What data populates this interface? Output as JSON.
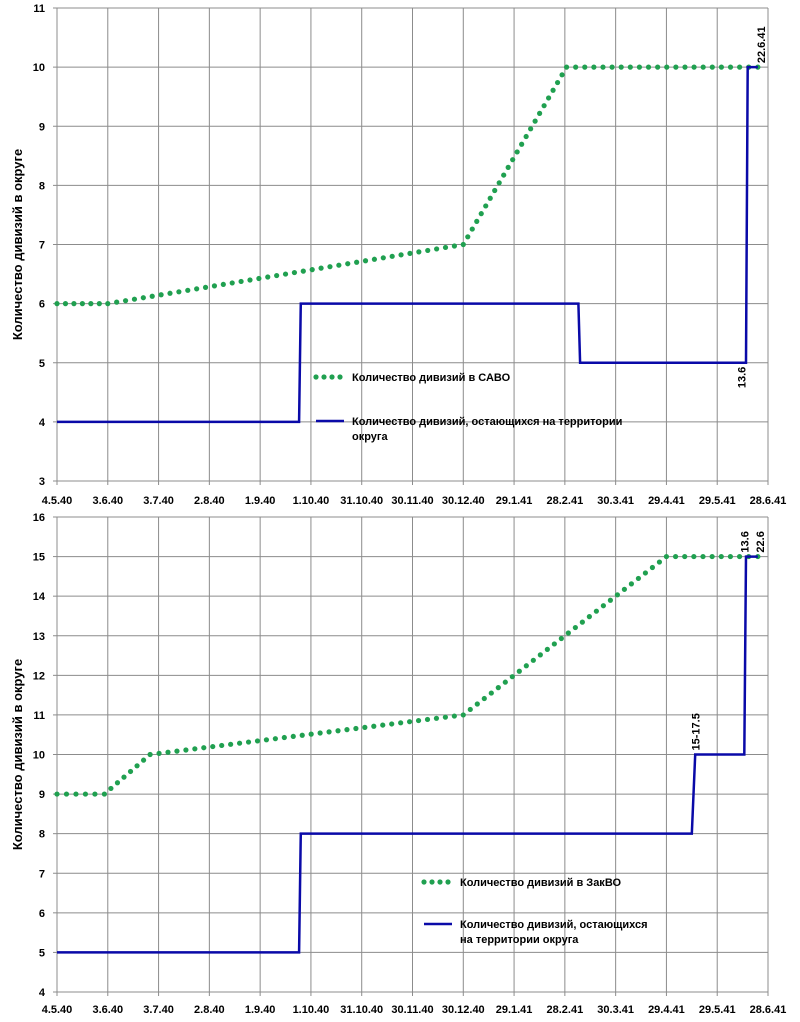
{
  "chart_data": [
    {
      "type": "line",
      "ylabel": "Количество дивизий в округе",
      "xlabel": "",
      "ylim": [
        3,
        11
      ],
      "yticks": [
        "3",
        "4",
        "5",
        "6",
        "7",
        "8",
        "9",
        "10",
        "11"
      ],
      "xticks": [
        "4.5.40",
        "3.6.40",
        "3.7.40",
        "2.8.40",
        "1.9.40",
        "1.10.40",
        "31.10.40",
        "30.11.40",
        "30.12.40",
        "29.1.41",
        "28.2.41",
        "30.3.41",
        "29.4.41",
        "29.5.41",
        "28.6.41"
      ],
      "grid": true,
      "series": [
        {
          "name": "Количество дивизий в САВО",
          "style": "dotted",
          "color": "#20a050",
          "x": [
            "4.5.40",
            "3.6.40",
            "30.12.40",
            "1.3.41",
            "22.6.41"
          ],
          "y": [
            6,
            6,
            7,
            10,
            10
          ]
        },
        {
          "name": "Количество дивизий, остающихся на территории округа",
          "style": "solid",
          "color": "#0a0aa8",
          "x": [
            "4.5.40",
            "24.9.40",
            "25.9.40",
            "8.3.41",
            "9.3.41",
            "15.6.41",
            "16.6.41",
            "22.6.41"
          ],
          "y": [
            4,
            4,
            6,
            6,
            5,
            5,
            10,
            10
          ]
        }
      ],
      "legend": "center",
      "annotations": [
        {
          "text": "13.6",
          "x": "13.6.41",
          "y": 5
        },
        {
          "text": "22.6.41",
          "x": "22.6.41",
          "y": 10
        }
      ]
    },
    {
      "type": "line",
      "ylabel": "Количество дивизий в округе",
      "xlabel": "",
      "ylim": [
        4,
        16
      ],
      "yticks": [
        "4",
        "5",
        "6",
        "7",
        "8",
        "9",
        "10",
        "11",
        "12",
        "13",
        "14",
        "15",
        "16"
      ],
      "xticks": [
        "4.5.40",
        "3.6.40",
        "3.7.40",
        "2.8.40",
        "1.9.40",
        "1.10.40",
        "31.10.40",
        "30.11.40",
        "30.12.40",
        "29.1.41",
        "28.2.41",
        "30.3.41",
        "29.4.41",
        "29.5.41",
        "28.6.41"
      ],
      "grid": true,
      "series": [
        {
          "name": "Количество дивизий в ЗакВО",
          "style": "dotted",
          "color": "#20a050",
          "x": [
            "4.5.40",
            "1.6.40",
            "28.6.40",
            "30.12.40",
            "29.4.41",
            "22.6.41"
          ],
          "y": [
            9,
            9,
            10,
            11,
            15,
            15
          ]
        },
        {
          "name": "Количество дивизий, остающихся на территории округа",
          "style": "solid",
          "color": "#0a0aa8",
          "x": [
            "4.5.40",
            "24.9.40",
            "25.9.40",
            "14.5.41",
            "16.5.41",
            "14.6.41",
            "15.6.41",
            "22.6.41"
          ],
          "y": [
            5,
            5,
            8,
            8,
            10,
            10,
            15,
            15
          ]
        }
      ],
      "legend": "center",
      "annotations": [
        {
          "text": "15-17.5",
          "x": "15.5.41",
          "y": 10
        },
        {
          "text": "13.6",
          "x": "13.6.41",
          "y": 15
        },
        {
          "text": "22.6",
          "x": "22.6.41",
          "y": 15
        }
      ]
    }
  ]
}
